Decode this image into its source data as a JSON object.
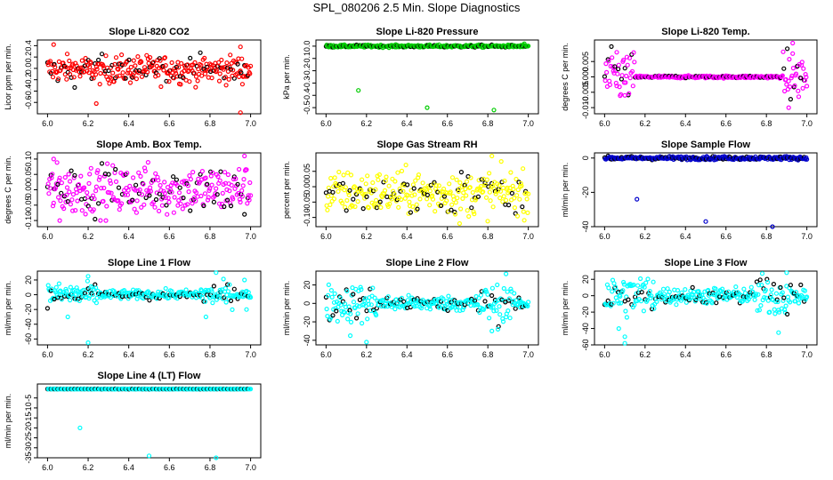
{
  "figure_title": "SPL_080206  2.5 Min. Slope Diagnostics",
  "chart_data": [
    {
      "type": "scatter",
      "title": "Slope Li-820 CO2",
      "ylabel": "Licor ppm per min.",
      "xlim": [
        5.95,
        7.05
      ],
      "ylim": [
        -0.8,
        0.5
      ],
      "xticks": [
        6.0,
        6.2,
        6.4,
        6.6,
        6.8,
        7.0
      ],
      "xtick_labels": [
        "6.0",
        "6.2",
        "6.4",
        "6.6",
        "6.8",
        "7.0"
      ],
      "yticks": [
        -0.6,
        -0.4,
        -0.2,
        0.0,
        0.2,
        0.4
      ],
      "ytick_labels": [
        "-0.6",
        "-0.4",
        "-0.2",
        "0.0",
        "0.2",
        "0.4"
      ],
      "color": "#ff0000",
      "secondary_color": "#000000",
      "center": -0.02,
      "spread": 0.12,
      "outliers": [
        [
          6.03,
          0.42
        ],
        [
          6.24,
          -0.62
        ],
        [
          6.95,
          -0.78
        ],
        [
          6.95,
          0.38
        ]
      ]
    },
    {
      "type": "scatter",
      "title": "Slope Li-820 Pressure",
      "ylabel": "kPa per min.",
      "xlim": [
        5.95,
        7.05
      ],
      "ylim": [
        -0.55,
        0.05
      ],
      "xticks": [
        6.0,
        6.2,
        6.4,
        6.6,
        6.8,
        7.0
      ],
      "xtick_labels": [
        "6.0",
        "6.2",
        "6.4",
        "6.6",
        "6.8",
        "7.0"
      ],
      "yticks": [
        -0.5,
        -0.4,
        -0.3,
        -0.2,
        -0.1,
        0.0
      ],
      "ytick_labels": [
        "-0.5",
        "-0.4",
        "-0.3",
        "-0.2",
        "-0.1",
        "0.0"
      ],
      "color": "#00cc00",
      "secondary_color": "#000000",
      "center": 0.0,
      "spread": 0.005,
      "outliers": [
        [
          6.16,
          -0.36
        ],
        [
          6.5,
          -0.5
        ],
        [
          6.83,
          -0.52
        ],
        [
          6.98,
          0.02
        ]
      ]
    },
    {
      "type": "scatter",
      "title": "Slope Li-820 Temp.",
      "ylabel": "degrees C per min.",
      "xlim": [
        5.95,
        7.05
      ],
      "ylim": [
        -0.012,
        0.012
      ],
      "xticks": [
        6.0,
        6.2,
        6.4,
        6.6,
        6.8,
        7.0
      ],
      "xtick_labels": [
        "6.0",
        "6.2",
        "6.4",
        "6.6",
        "6.8",
        "7.0"
      ],
      "yticks": [
        -0.01,
        -0.005,
        0.0,
        0.005
      ],
      "ytick_labels": [
        "-0.010",
        "-0.005",
        "0.000",
        "0.005"
      ],
      "color": "#ff00ff",
      "secondary_color": "#000000",
      "center": 0.0,
      "spread": 0.004,
      "mode": "edges",
      "outliers": [
        [
          6.06,
          0.008
        ],
        [
          6.1,
          -0.006
        ],
        [
          6.93,
          0.011
        ],
        [
          6.91,
          -0.01
        ]
      ]
    },
    {
      "type": "scatter",
      "title": "Slope Amb. Box Temp.",
      "ylabel": "degrees C per min.",
      "xlim": [
        5.95,
        7.05
      ],
      "ylim": [
        -0.12,
        0.12
      ],
      "xticks": [
        6.0,
        6.2,
        6.4,
        6.6,
        6.8,
        7.0
      ],
      "xtick_labels": [
        "6.0",
        "6.2",
        "6.4",
        "6.6",
        "6.8",
        "7.0"
      ],
      "yticks": [
        -0.1,
        -0.05,
        0.0,
        0.05,
        0.1
      ],
      "ytick_labels": [
        "-0.10",
        "-0.05",
        "0.00",
        "0.05",
        "0.10"
      ],
      "color": "#ff00ff",
      "secondary_color": "#000000",
      "center": 0.0,
      "spread": 0.04,
      "outliers": [
        [
          6.03,
          0.1
        ],
        [
          6.97,
          0.11
        ],
        [
          6.06,
          -0.1
        ]
      ]
    },
    {
      "type": "scatter",
      "title": "Slope Gas Stream RH",
      "ylabel": "percent per min.",
      "xlim": [
        5.95,
        7.05
      ],
      "ylim": [
        -0.13,
        0.11
      ],
      "xticks": [
        6.0,
        6.2,
        6.4,
        6.6,
        6.8,
        7.0
      ],
      "xtick_labels": [
        "6.0",
        "6.2",
        "6.4",
        "6.6",
        "6.8",
        "7.0"
      ],
      "yticks": [
        -0.1,
        -0.05,
        0.0,
        0.05
      ],
      "ytick_labels": [
        "-0.10",
        "-0.05",
        "0.00",
        "0.05"
      ],
      "color": "#ffff00",
      "secondary_color": "#000000",
      "center": -0.02,
      "spread": 0.035,
      "outliers": [
        [
          6.82,
          0.1
        ],
        [
          6.66,
          -0.12
        ]
      ]
    },
    {
      "type": "scatter",
      "title": "Slope Sample Flow",
      "ylabel": "ml/min per min.",
      "xlim": [
        5.95,
        7.05
      ],
      "ylim": [
        -40,
        3
      ],
      "xticks": [
        6.0,
        6.2,
        6.4,
        6.6,
        6.8,
        7.0
      ],
      "xtick_labels": [
        "6.0",
        "6.2",
        "6.4",
        "6.6",
        "6.8",
        "7.0"
      ],
      "yticks": [
        -40,
        -20,
        0
      ],
      "ytick_labels": [
        "-40",
        "-20",
        "0"
      ],
      "color": "#0000cc",
      "secondary_color": "#000000",
      "center": 0.0,
      "spread": 0.5,
      "outliers": [
        [
          6.16,
          -24
        ],
        [
          6.5,
          -37
        ],
        [
          6.83,
          -40
        ]
      ]
    },
    {
      "type": "scatter",
      "title": "Slope Line 1 Flow",
      "ylabel": "ml/min per min.",
      "xlim": [
        5.95,
        7.05
      ],
      "ylim": [
        -68,
        32
      ],
      "xticks": [
        6.0,
        6.2,
        6.4,
        6.6,
        6.8,
        7.0
      ],
      "xtick_labels": [
        "6.0",
        "6.2",
        "6.4",
        "6.6",
        "6.8",
        "7.0"
      ],
      "yticks": [
        -60,
        -40,
        -20,
        0,
        20
      ],
      "ytick_labels": [
        "-60",
        "-40",
        "-20",
        "0",
        "20"
      ],
      "color": "#00ffff",
      "secondary_color": "#000000",
      "center": 0.0,
      "spread": 3,
      "mode": "clusters",
      "outliers": [
        [
          6.2,
          -65
        ],
        [
          6.2,
          25
        ],
        [
          6.1,
          -30
        ],
        [
          6.83,
          30
        ],
        [
          6.78,
          -30
        ],
        [
          6.98,
          -20
        ],
        [
          6.97,
          20
        ]
      ]
    },
    {
      "type": "scatter",
      "title": "Slope Line 2 Flow",
      "ylabel": "ml/min per min.",
      "xlim": [
        5.95,
        7.05
      ],
      "ylim": [
        -45,
        35
      ],
      "xticks": [
        6.0,
        6.2,
        6.4,
        6.6,
        6.8,
        7.0
      ],
      "xtick_labels": [
        "6.0",
        "6.2",
        "6.4",
        "6.6",
        "6.8",
        "7.0"
      ],
      "yticks": [
        -40,
        -20,
        0,
        20
      ],
      "ytick_labels": [
        "-40",
        "-20",
        "0",
        "20"
      ],
      "color": "#00ffff",
      "secondary_color": "#000000",
      "center": 0.0,
      "spread": 4,
      "mode": "clusters",
      "outliers": [
        [
          6.2,
          -42
        ],
        [
          6.12,
          -35
        ],
        [
          6.89,
          32
        ],
        [
          6.82,
          -30
        ],
        [
          6.85,
          -28
        ]
      ]
    },
    {
      "type": "scatter",
      "title": "Slope Line 3 Flow",
      "ylabel": "ml/min per min.",
      "xlim": [
        5.95,
        7.05
      ],
      "ylim": [
        -60,
        30
      ],
      "xticks": [
        6.0,
        6.2,
        6.4,
        6.6,
        6.8,
        7.0
      ],
      "xtick_labels": [
        "6.0",
        "6.2",
        "6.4",
        "6.6",
        "6.8",
        "7.0"
      ],
      "yticks": [
        -60,
        -40,
        -20,
        0,
        20
      ],
      "ytick_labels": [
        "-60",
        "-40",
        "-20",
        "0",
        "20"
      ],
      "color": "#00ffff",
      "secondary_color": "#000000",
      "center": 0.0,
      "spread": 5,
      "mode": "clusters",
      "outliers": [
        [
          6.1,
          -58
        ],
        [
          6.1,
          -50
        ],
        [
          6.07,
          -40
        ],
        [
          6.86,
          -45
        ],
        [
          6.9,
          28
        ]
      ]
    },
    {
      "type": "scatter",
      "title": "Slope Line 4 (LT) Flow",
      "ylabel": "ml/min per min.",
      "xlim": [
        5.95,
        7.05
      ],
      "ylim": [
        -35,
        2
      ],
      "xticks": [
        6.0,
        6.2,
        6.4,
        6.6,
        6.8,
        7.0
      ],
      "xtick_labels": [
        "6.0",
        "6.2",
        "6.4",
        "6.6",
        "6.8",
        "7.0"
      ],
      "yticks": [
        -35,
        -30,
        -25,
        -20,
        -15,
        -10,
        -5
      ],
      "ytick_labels": [
        "-35",
        "-30",
        "-25",
        "-20",
        "-15",
        "-10",
        "-5"
      ],
      "color": "#00ffff",
      "secondary_color": "#000000",
      "center": -0.5,
      "spread": 0.05,
      "outliers": [
        [
          6.16,
          -20
        ],
        [
          6.5,
          -34
        ],
        [
          6.83,
          -35
        ]
      ]
    }
  ]
}
